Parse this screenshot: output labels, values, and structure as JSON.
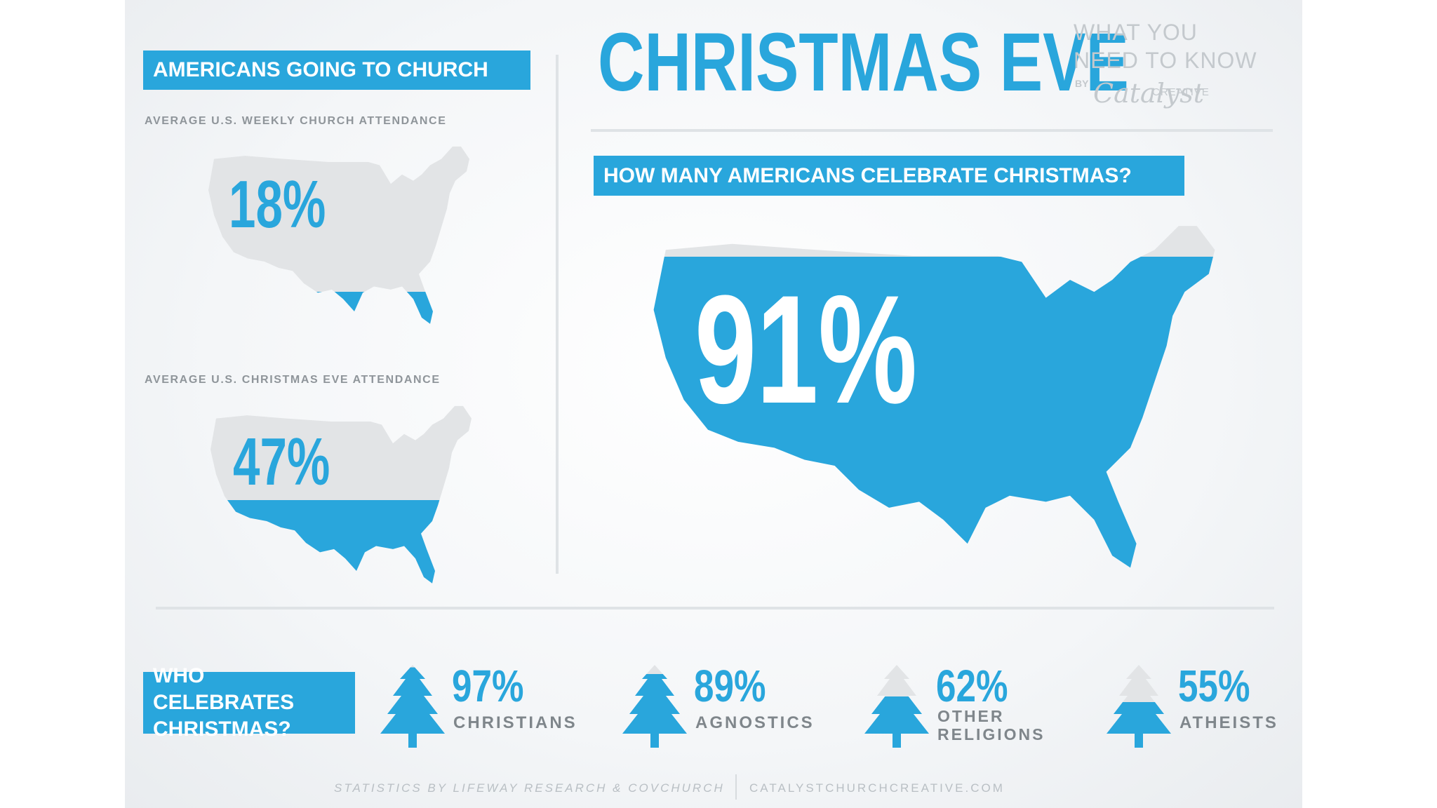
{
  "title": {
    "main": "CHRISTMAS EVE",
    "sub_line1": "WHAT YOU",
    "sub_line2": "NEED TO KNOW",
    "by": "BY",
    "logo_script": "Catalyst",
    "logo_word": "CREATIVE"
  },
  "colors": {
    "accent": "#29a6dc",
    "map_gray": "#e2e4e6",
    "text_gray": "#8f959a"
  },
  "church": {
    "header": "AMERICANS GOING TO CHURCH",
    "weekly_caption": "AVERAGE U.S. WEEKLY CHURCH ATTENDANCE",
    "weekly_label": "18%",
    "christmas_eve_caption": "AVERAGE U.S. CHRISTMAS EVE ATTENDANCE",
    "christmas_eve_label": "47%"
  },
  "celebrate": {
    "header": "HOW MANY AMERICANS CELEBRATE CHRISTMAS?",
    "label": "91%"
  },
  "who": {
    "header_line1": "WHO CELEBRATES",
    "header_line2": "CHRISTMAS?"
  },
  "footer": {
    "left": "STATISTICS BY LIFEWAY RESEARCH & COVCHURCH",
    "right": "CATALYSTCHURCHCREATIVE.COM"
  },
  "chart_data": [
    {
      "type": "area",
      "title": "AVERAGE U.S. WEEKLY CHURCH ATTENDANCE",
      "unit": "%",
      "categories": [
        "Weekly church attendance"
      ],
      "values": [
        18
      ],
      "ylim": [
        0,
        100
      ]
    },
    {
      "type": "area",
      "title": "AVERAGE U.S. CHRISTMAS EVE ATTENDANCE",
      "unit": "%",
      "categories": [
        "Christmas Eve attendance"
      ],
      "values": [
        47
      ],
      "ylim": [
        0,
        100
      ]
    },
    {
      "type": "area",
      "title": "HOW MANY AMERICANS CELEBRATE CHRISTMAS?",
      "unit": "%",
      "categories": [
        "Americans celebrating Christmas"
      ],
      "values": [
        91
      ],
      "ylim": [
        0,
        100
      ]
    },
    {
      "type": "bar",
      "title": "WHO CELEBRATES CHRISTMAS?",
      "unit": "%",
      "categories": [
        "CHRISTIANS",
        "AGNOSTICS",
        "OTHER\nRELIGIONS",
        "ATHEISTS"
      ],
      "labels": [
        "97%",
        "89%",
        "62%",
        "55%"
      ],
      "values": [
        97,
        89,
        62,
        55
      ],
      "ylim": [
        0,
        100
      ]
    }
  ]
}
